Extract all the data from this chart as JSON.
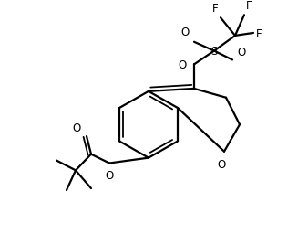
{
  "background": "#ffffff",
  "line_color": "#000000",
  "lw": 1.6,
  "lw_inner": 1.3,
  "figsize": [
    3.38,
    2.7
  ],
  "dpi": 100,
  "atoms": {
    "comment": "All coords in figure units (x: 0-338, y: 0-270, y=0 at bottom)"
  }
}
